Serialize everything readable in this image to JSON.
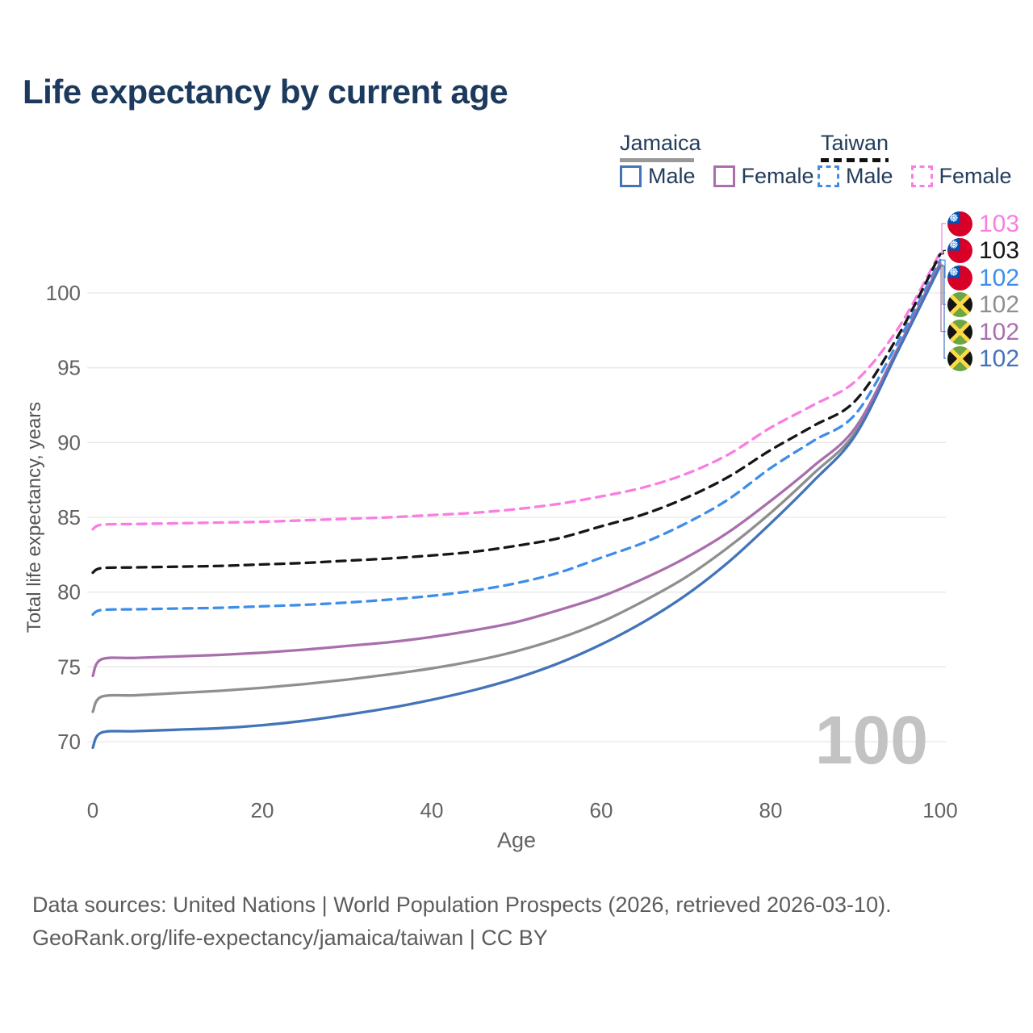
{
  "header": {
    "title": "Life expectancy by current age"
  },
  "legend": {
    "groups": [
      {
        "label": "Jamaica",
        "line_style": "solid",
        "underline_color": "#999999",
        "items": [
          {
            "label": "Male",
            "color": "#4374b9"
          },
          {
            "label": "Female",
            "color": "#a96fad"
          }
        ]
      },
      {
        "label": "Taiwan",
        "line_style": "dashed",
        "underline_color": "#111111",
        "items": [
          {
            "label": "Male",
            "color": "#3e8ee9"
          },
          {
            "label": "Female",
            "color": "#fa7de1"
          }
        ]
      }
    ]
  },
  "chart_data": {
    "type": "line",
    "title": "Life expectancy by current age",
    "xlabel": "Age",
    "ylabel": "Total life expectancy, years",
    "xlim": [
      0,
      100
    ],
    "ylim": [
      70,
      100
    ],
    "xticks": [
      0,
      20,
      40,
      60,
      80,
      100
    ],
    "yticks": [
      70,
      75,
      80,
      85,
      90,
      95,
      100
    ],
    "grid": true,
    "legend_position": "top-right",
    "x": [
      0,
      1,
      5,
      10,
      15,
      20,
      25,
      30,
      35,
      40,
      45,
      50,
      55,
      60,
      65,
      70,
      75,
      80,
      85,
      90,
      95,
      100
    ],
    "series": [
      {
        "name": "Taiwan Female",
        "country": "Taiwan",
        "sex": "Female",
        "style": "dashed",
        "color": "#fa7de1",
        "flag": "taiwan",
        "end_label": "103",
        "values": [
          84.2,
          84.5,
          84.55,
          84.6,
          84.65,
          84.7,
          84.8,
          84.9,
          85.0,
          85.15,
          85.3,
          85.55,
          85.9,
          86.4,
          87.0,
          87.9,
          89.2,
          91.0,
          92.5,
          94.1,
          97.6,
          102.7
        ]
      },
      {
        "name": "Taiwan",
        "country": "Taiwan",
        "sex": "Both",
        "style": "dashed",
        "color": "#161616",
        "flag": "taiwan",
        "end_label": "103",
        "values": [
          81.3,
          81.6,
          81.65,
          81.7,
          81.75,
          81.85,
          81.95,
          82.1,
          82.25,
          82.45,
          82.7,
          83.1,
          83.6,
          84.4,
          85.2,
          86.3,
          87.7,
          89.5,
          91.1,
          92.8,
          97.1,
          102.6
        ]
      },
      {
        "name": "Taiwan Male",
        "country": "Taiwan",
        "sex": "Male",
        "style": "dashed",
        "color": "#3e8ee9",
        "flag": "taiwan",
        "end_label": "102",
        "values": [
          78.5,
          78.8,
          78.85,
          78.9,
          78.95,
          79.05,
          79.15,
          79.3,
          79.5,
          79.75,
          80.1,
          80.6,
          81.3,
          82.3,
          83.3,
          84.6,
          86.2,
          88.3,
          90.1,
          91.9,
          96.7,
          102.2
        ]
      },
      {
        "name": "Jamaica",
        "country": "Jamaica",
        "sex": "Both",
        "style": "solid",
        "color": "#8f8f8f",
        "flag": "jamaica",
        "end_label": "102",
        "values": [
          72.0,
          73.0,
          73.1,
          73.25,
          73.4,
          73.6,
          73.85,
          74.15,
          74.5,
          74.9,
          75.4,
          76.05,
          76.9,
          78.0,
          79.4,
          81.0,
          83.0,
          85.3,
          87.9,
          90.7,
          96.2,
          101.9
        ]
      },
      {
        "name": "Jamaica Female",
        "country": "Jamaica",
        "sex": "Female",
        "style": "solid",
        "color": "#a96fad",
        "flag": "jamaica",
        "end_label": "102",
        "values": [
          74.4,
          75.5,
          75.6,
          75.7,
          75.8,
          75.95,
          76.15,
          76.4,
          76.65,
          77.0,
          77.45,
          78.0,
          78.8,
          79.7,
          80.9,
          82.3,
          84.0,
          86.1,
          88.4,
          91.0,
          96.3,
          102.0
        ]
      },
      {
        "name": "Jamaica Male",
        "country": "Jamaica",
        "sex": "Male",
        "style": "solid",
        "color": "#4374b9",
        "flag": "jamaica",
        "end_label": "102",
        "values": [
          69.6,
          70.6,
          70.7,
          70.8,
          70.9,
          71.1,
          71.4,
          71.8,
          72.25,
          72.8,
          73.45,
          74.25,
          75.25,
          76.5,
          78.0,
          79.8,
          82.0,
          84.6,
          87.4,
          90.5,
          96.1,
          101.8
        ]
      }
    ]
  },
  "end_label_order": [
    0,
    1,
    2,
    3,
    4,
    5
  ],
  "watermark": {
    "text": "100"
  },
  "footer": {
    "line1": "Data sources: United Nations | World Population Prospects (2026, retrieved 2026-03-10).",
    "line2": "GeoRank.org/life-expectancy/jamaica/taiwan | CC BY"
  }
}
